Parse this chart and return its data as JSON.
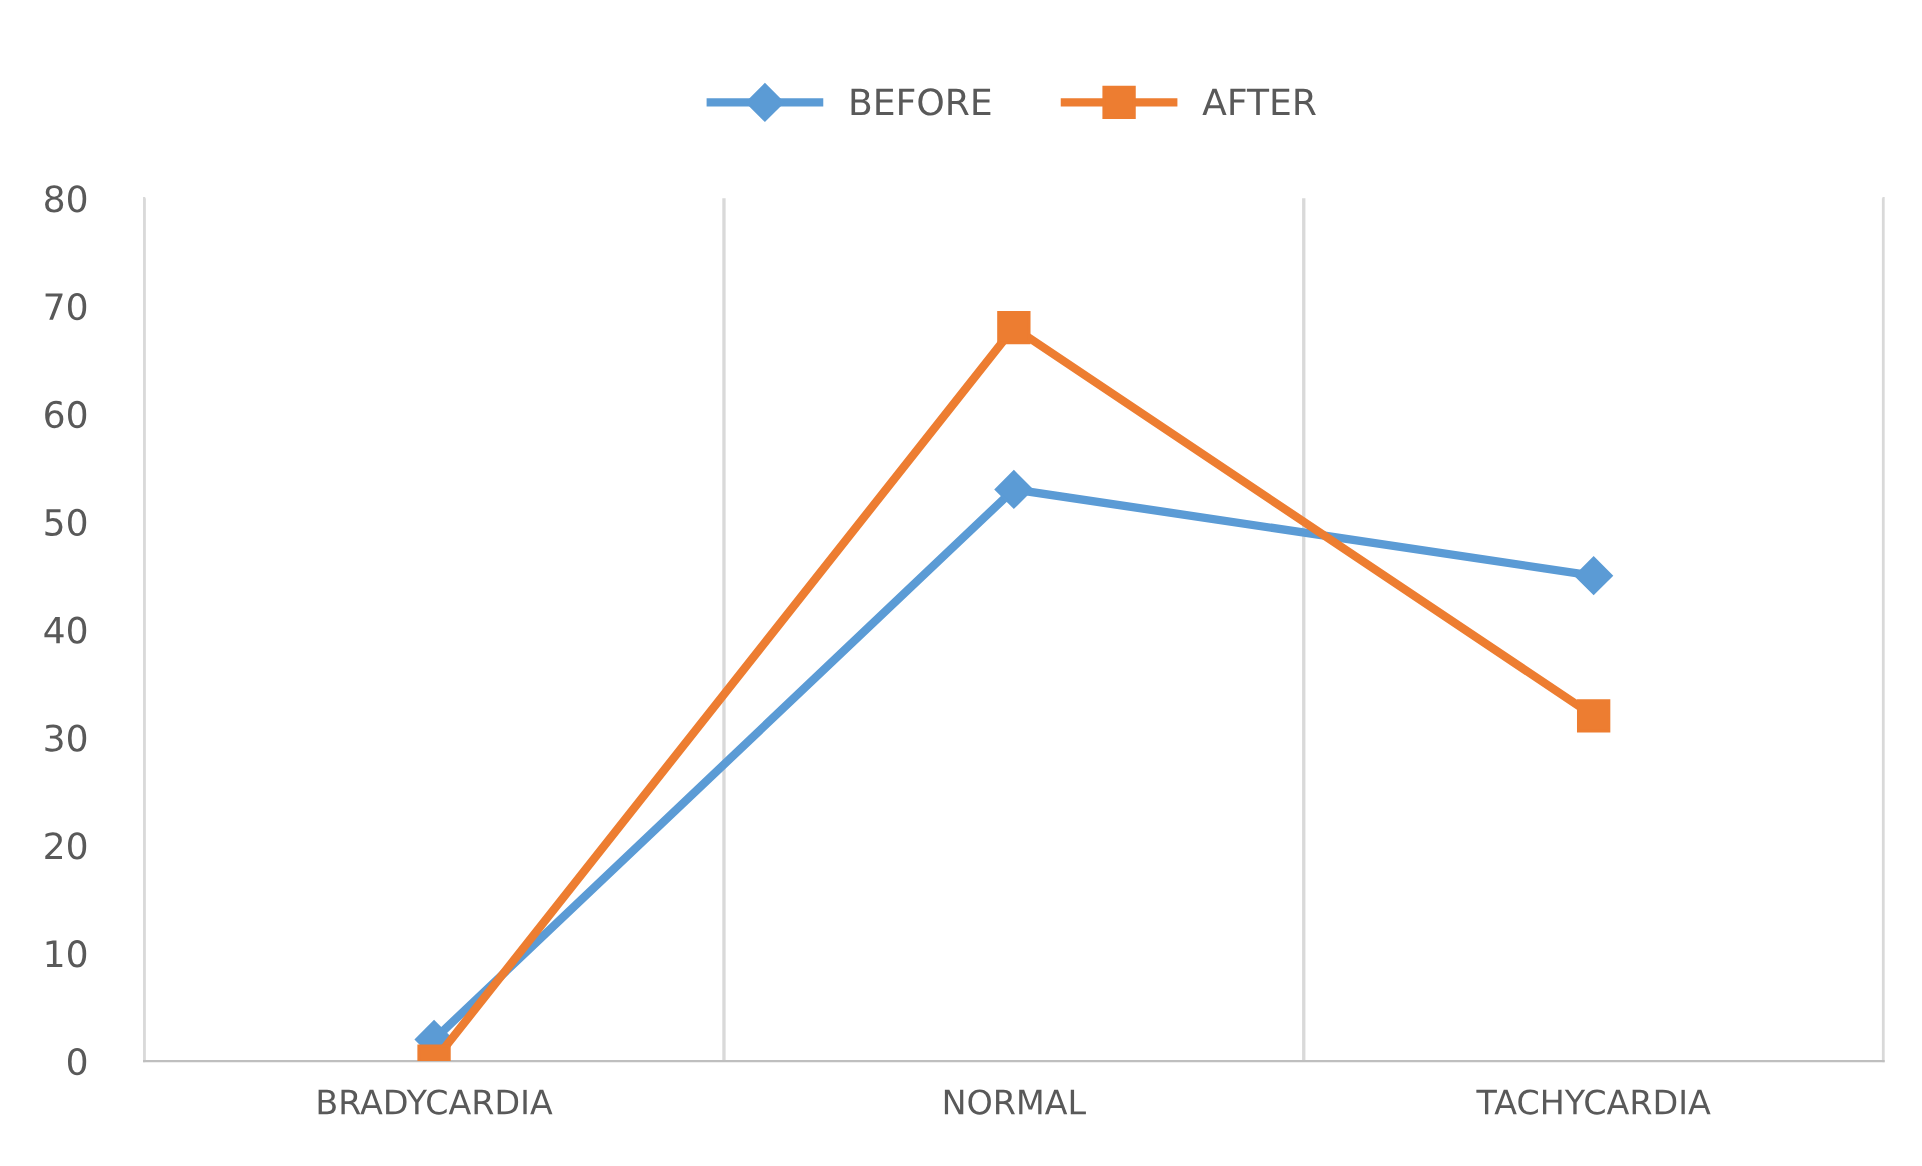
{
  "chart_data": {
    "type": "line",
    "categories": [
      "BRADYCARDIA",
      "NORMAL",
      "TACHYCARDIA"
    ],
    "series": [
      {
        "name": "BEFORE",
        "color": "#5b9bd5",
        "marker": "diamond",
        "values": [
          2,
          53,
          45
        ]
      },
      {
        "name": "AFTER",
        "color": "#ed7d31",
        "marker": "square",
        "values": [
          0,
          68,
          32
        ]
      }
    ],
    "ylim": [
      0,
      80
    ],
    "yticks": [
      0,
      10,
      20,
      30,
      40,
      50,
      60,
      70,
      80
    ],
    "grid": "x",
    "legend": "top",
    "line_style": "solid"
  }
}
